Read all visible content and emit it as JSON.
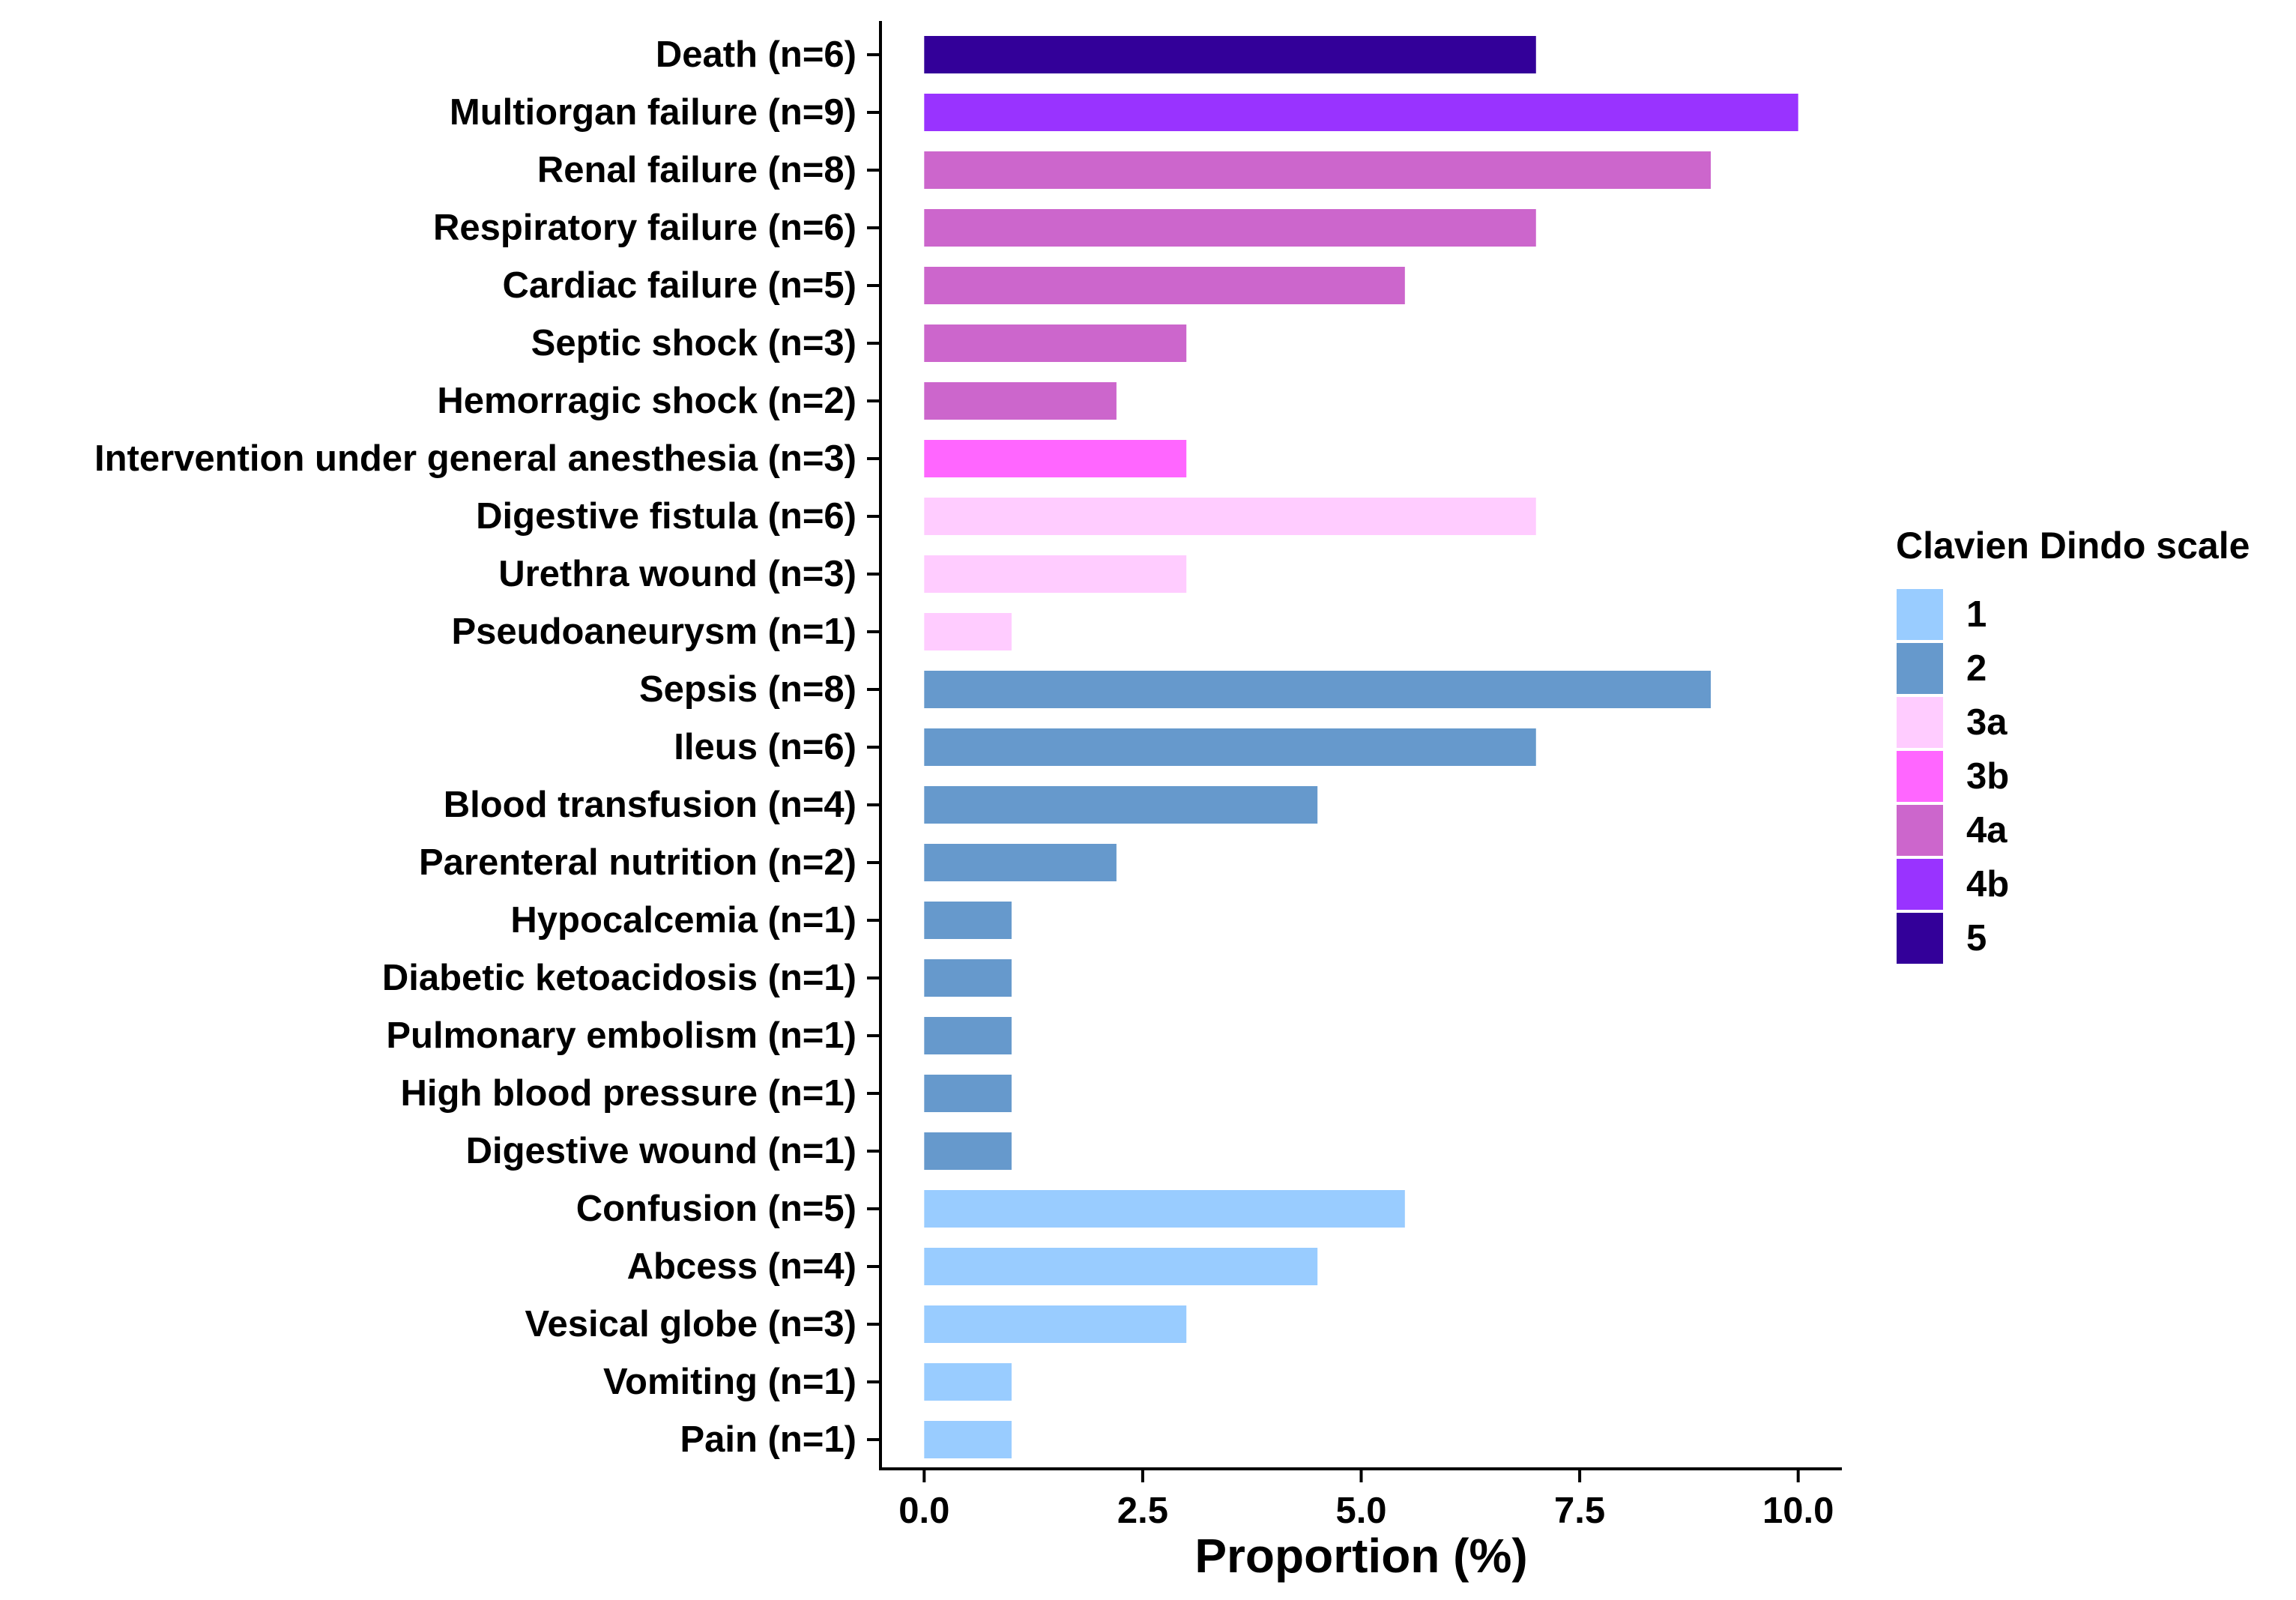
{
  "chart_data": {
    "type": "bar",
    "orientation": "horizontal",
    "title": "",
    "xlabel": "Proportion (%)",
    "ylabel": "",
    "xlim": [
      -0.5,
      10.5
    ],
    "xticks": [
      0,
      2.5,
      5,
      7.5,
      10
    ],
    "xtick_labels": [
      "0.0",
      "2.5",
      "5.0",
      "7.5",
      "10.0"
    ],
    "grid": false,
    "legend": {
      "title": "Clavien Dindo scale",
      "placement": "right",
      "entries": [
        {
          "label": "1",
          "color": "#99CCFF"
        },
        {
          "label": "2",
          "color": "#6699CC"
        },
        {
          "label": "3a",
          "color": "#FFCCFF"
        },
        {
          "label": "3b",
          "color": "#FF66FF"
        },
        {
          "label": "4a",
          "color": "#CC66CC"
        },
        {
          "label": "4b",
          "color": "#9933FF"
        },
        {
          "label": "5",
          "color": "#330099"
        }
      ]
    },
    "categories": [
      "Death (n=6)",
      "Multiorgan failure (n=9)",
      "Renal failure (n=8)",
      "Respiratory failure (n=6)",
      "Cardiac failure (n=5)",
      "Septic shock (n=3)",
      "Hemorragic shock (n=2)",
      "Intervention under general anesthesia (n=3)",
      "Digestive fistula (n=6)",
      "Urethra wound (n=3)",
      "Pseudoaneurysm (n=1)",
      "Sepsis (n=8)",
      "Ileus (n=6)",
      "Blood transfusion (n=4)",
      "Parenteral nutrition (n=2)",
      "Hypocalcemia (n=1)",
      "Diabetic ketoacidosis (n=1)",
      "Pulmonary embolism (n=1)",
      "High blood pressure (n=1)",
      "Digestive wound (n=1)",
      "Confusion (n=5)",
      "Abcess (n=4)",
      "Vesical globe (n=3)",
      "Vomiting (n=1)",
      "Pain (n=1)"
    ],
    "values": [
      7,
      10,
      9,
      7,
      5.5,
      3,
      2.2,
      3,
      7,
      3,
      1,
      9,
      7,
      4.5,
      2.2,
      1,
      1,
      1,
      1,
      1,
      5.5,
      4.5,
      3,
      1,
      1
    ],
    "grades": [
      "5",
      "4b",
      "4a",
      "4a",
      "4a",
      "4a",
      "4a",
      "3b",
      "3a",
      "3a",
      "3a",
      "2",
      "2",
      "2",
      "2",
      "2",
      "2",
      "2",
      "2",
      "2",
      "1",
      "1",
      "1",
      "1",
      "1"
    ]
  }
}
